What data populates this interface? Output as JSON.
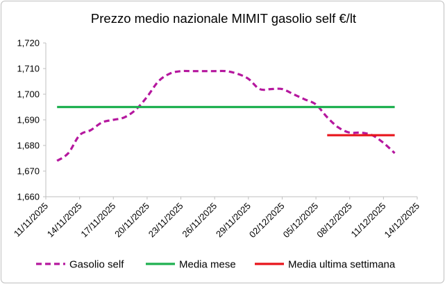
{
  "chart_data": {
    "type": "line",
    "title": "Prezzo medio nazionale MIMIT gasolio self €/lt",
    "xlabel": "",
    "ylabel": "",
    "ylim": [
      1.66,
      1.72
    ],
    "yticks": [
      "1,660",
      "1,670",
      "1,680",
      "1,690",
      "1,700",
      "1,710",
      "1,720"
    ],
    "xlim": [
      "2025-11-11",
      "2025-12-14"
    ],
    "xticks": [
      "11/11/2025",
      "14/11/2025",
      "17/11/2025",
      "20/11/2025",
      "23/11/2025",
      "26/11/2025",
      "29/11/2025",
      "02/12/2025",
      "05/12/2025",
      "08/12/2025",
      "11/12/2025",
      "14/12/2025"
    ],
    "grid": false,
    "legend_position": "bottom",
    "series": [
      {
        "name": "Gasolio self",
        "color": "#b5179e",
        "style": "dashed",
        "points": [
          [
            "2025-11-12",
            1.674
          ],
          [
            "2025-11-13",
            1.677
          ],
          [
            "2025-11-14",
            1.684
          ],
          [
            "2025-11-15",
            1.686
          ],
          [
            "2025-11-16",
            1.689
          ],
          [
            "2025-11-17",
            1.69
          ],
          [
            "2025-11-18",
            1.691
          ],
          [
            "2025-11-19",
            1.694
          ],
          [
            "2025-11-20",
            1.699
          ],
          [
            "2025-11-21",
            1.705
          ],
          [
            "2025-11-22",
            1.708
          ],
          [
            "2025-11-23",
            1.709
          ],
          [
            "2025-11-24",
            1.709
          ],
          [
            "2025-11-25",
            1.709
          ],
          [
            "2025-11-26",
            1.709
          ],
          [
            "2025-11-27",
            1.709
          ],
          [
            "2025-11-28",
            1.708
          ],
          [
            "2025-11-29",
            1.706
          ],
          [
            "2025-11-30",
            1.702
          ],
          [
            "2025-12-01",
            1.702
          ],
          [
            "2025-12-02",
            1.702
          ],
          [
            "2025-12-03",
            1.7
          ],
          [
            "2025-12-04",
            1.698
          ],
          [
            "2025-12-05",
            1.696
          ],
          [
            "2025-12-06",
            1.691
          ],
          [
            "2025-12-07",
            1.687
          ],
          [
            "2025-12-08",
            1.685
          ],
          [
            "2025-12-09",
            1.685
          ],
          [
            "2025-12-10",
            1.684
          ],
          [
            "2025-12-11",
            1.681
          ],
          [
            "2025-12-12",
            1.677
          ]
        ]
      },
      {
        "name": "Media mese",
        "color": "#1fb050",
        "style": "solid",
        "points": [
          [
            "2025-11-12",
            1.695
          ],
          [
            "2025-12-12",
            1.695
          ]
        ]
      },
      {
        "name": "Media ultima settimana",
        "color": "#e8141b",
        "style": "solid",
        "points": [
          [
            "2025-12-06",
            1.684
          ],
          [
            "2025-12-12",
            1.684
          ]
        ]
      }
    ]
  }
}
